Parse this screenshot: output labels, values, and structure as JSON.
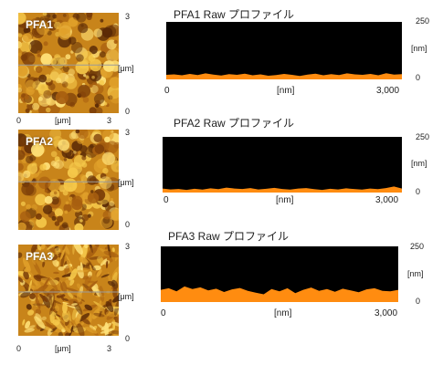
{
  "accent_colors": {
    "profile_fill": "#ff8c10",
    "plot_bg": "#000000"
  },
  "afm_images": [
    {
      "label": "PFA1",
      "x_ticks": [
        "0",
        "3"
      ],
      "y_ticks": [
        "3",
        "0"
      ],
      "x_unit": "[μm]",
      "y_unit": "[μm]"
    },
    {
      "label": "PFA2",
      "x_ticks": [
        "0",
        "3"
      ],
      "y_ticks": [
        "3",
        "0"
      ],
      "x_unit": "[μm]",
      "y_unit": "[μm]"
    },
    {
      "label": "PFA3",
      "x_ticks": [
        "0",
        "3"
      ],
      "y_ticks": [
        "3",
        "0"
      ],
      "x_unit": "[μm]",
      "y_unit": "[μm]"
    }
  ],
  "chart_data": [
    {
      "type": "area",
      "title": "PFA1 Raw プロファイル",
      "x_ticks": [
        "0",
        "3,000"
      ],
      "xlabel": "[nm]",
      "xlim": [
        0,
        3000
      ],
      "y_ticks": [
        "250",
        "0"
      ],
      "ylabel": "[nm]",
      "ylim": [
        0,
        250
      ],
      "x": [
        0,
        100,
        200,
        300,
        400,
        500,
        600,
        700,
        800,
        900,
        1000,
        1100,
        1200,
        1300,
        1400,
        1500,
        1600,
        1700,
        1800,
        1900,
        2000,
        2100,
        2200,
        2300,
        2400,
        2500,
        2600,
        2700,
        2800,
        2900,
        3000
      ],
      "values": [
        20,
        22,
        18,
        24,
        19,
        26,
        21,
        17,
        23,
        20,
        25,
        18,
        22,
        16,
        19,
        24,
        20,
        15,
        21,
        25,
        18,
        23,
        19,
        26,
        22,
        20,
        24,
        18,
        27,
        21,
        23
      ]
    },
    {
      "type": "area",
      "title": "PFA2 Raw プロファイル",
      "x_ticks": [
        "0",
        "3,000"
      ],
      "xlabel": "[nm]",
      "xlim": [
        0,
        3000
      ],
      "y_ticks": [
        "250",
        "0"
      ],
      "ylabel": "[nm]",
      "ylim": [
        0,
        250
      ],
      "x": [
        0,
        100,
        200,
        300,
        400,
        500,
        600,
        700,
        800,
        900,
        1000,
        1100,
        1200,
        1300,
        1400,
        1500,
        1600,
        1700,
        1800,
        1900,
        2000,
        2100,
        2200,
        2300,
        2400,
        2500,
        2600,
        2700,
        2800,
        2900,
        3000
      ],
      "values": [
        18,
        14,
        16,
        12,
        17,
        13,
        19,
        15,
        22,
        18,
        16,
        20,
        14,
        17,
        21,
        16,
        13,
        18,
        20,
        15,
        12,
        17,
        14,
        19,
        16,
        13,
        18,
        15,
        20,
        27,
        18
      ]
    },
    {
      "type": "area",
      "title": "PFA3 Raw プロファイル",
      "x_ticks": [
        "0",
        "3,000"
      ],
      "xlabel": "[nm]",
      "xlim": [
        0,
        3000
      ],
      "y_ticks": [
        "250",
        "0"
      ],
      "ylabel": "[nm]",
      "ylim": [
        0,
        250
      ],
      "x": [
        0,
        100,
        200,
        300,
        400,
        500,
        600,
        700,
        800,
        900,
        1000,
        1100,
        1200,
        1300,
        1400,
        1500,
        1600,
        1700,
        1800,
        1900,
        2000,
        2100,
        2200,
        2300,
        2400,
        2500,
        2600,
        2700,
        2800,
        2900,
        3000
      ],
      "values": [
        55,
        62,
        48,
        70,
        58,
        66,
        52,
        60,
        45,
        57,
        63,
        50,
        42,
        35,
        58,
        48,
        62,
        40,
        55,
        65,
        50,
        58,
        46,
        60,
        52,
        44,
        57,
        62,
        50,
        48,
        55
      ]
    }
  ]
}
